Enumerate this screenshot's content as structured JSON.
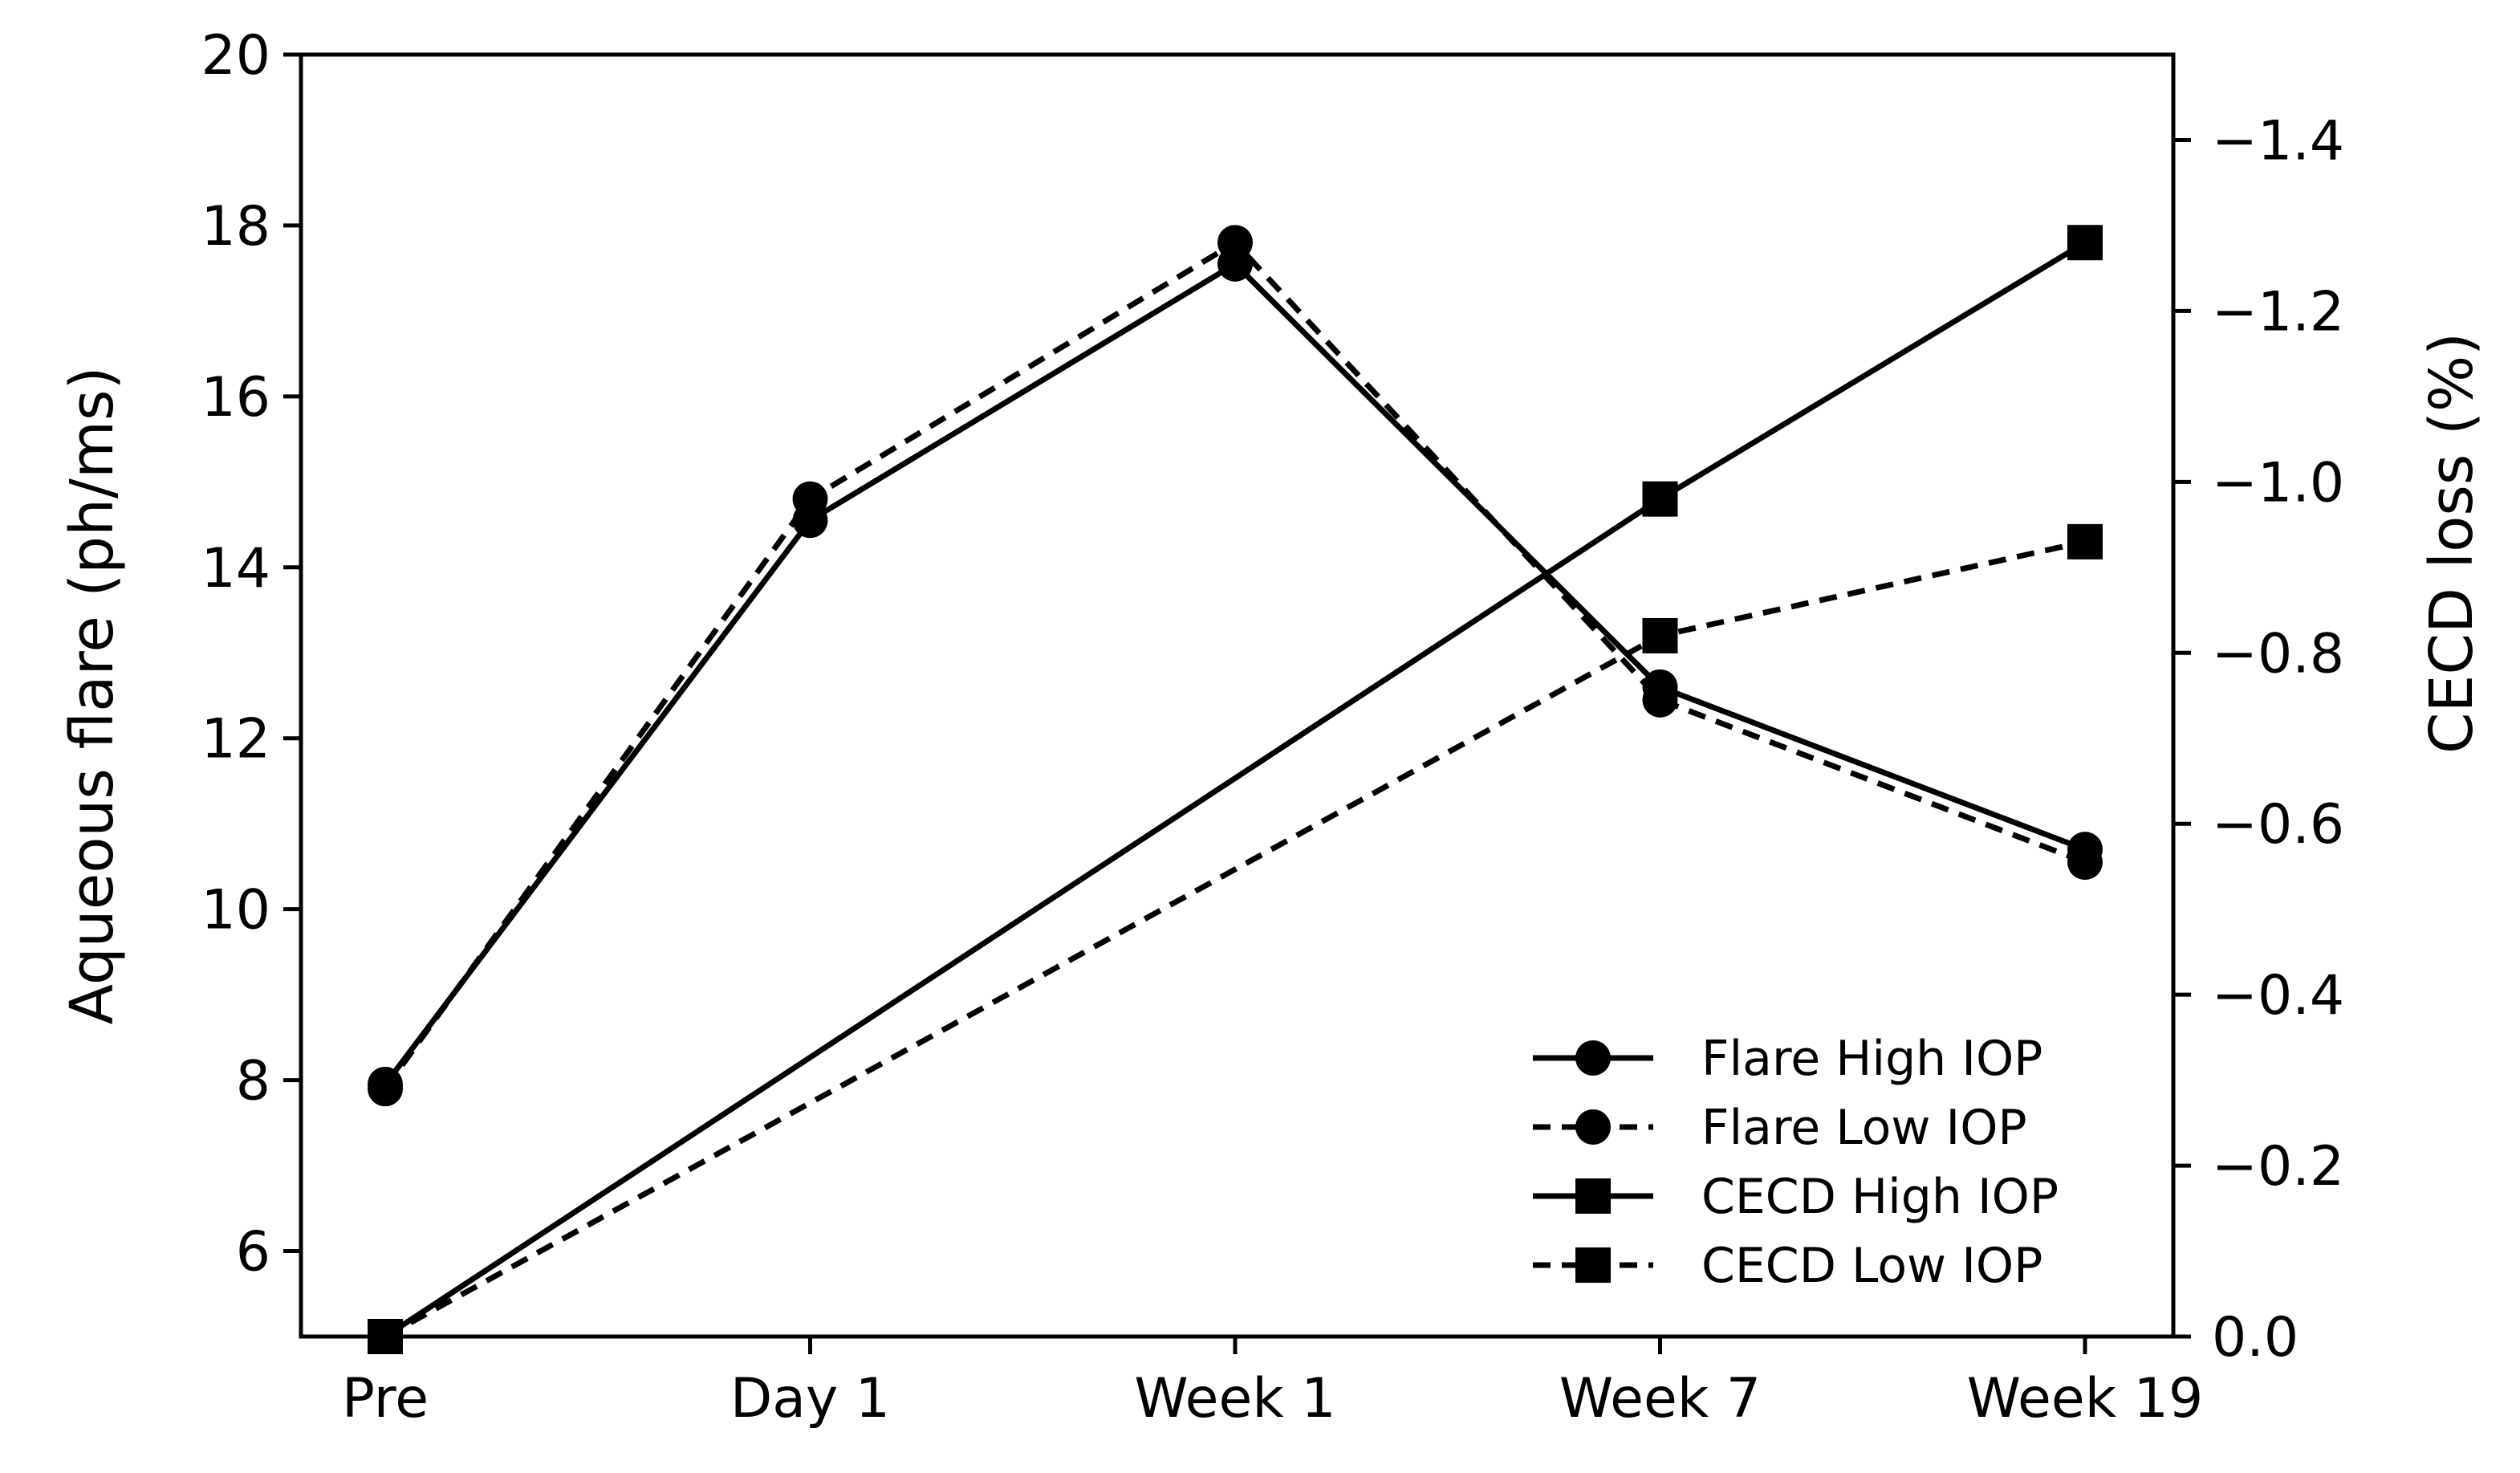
{
  "chart_data": {
    "type": "line",
    "title": "",
    "categories": [
      "Pre",
      "Day 1",
      "Week 1",
      "Week 7",
      "Week 19"
    ],
    "left_axis": {
      "label": "Aqueous flare (ph/ms)",
      "ylim": [
        5,
        20
      ],
      "ticks": [
        6,
        8,
        10,
        12,
        14,
        16,
        18,
        20
      ]
    },
    "right_axis": {
      "label": "CECD loss (%)",
      "ylim": [
        0.0,
        -1.5
      ],
      "ticks": [
        0.0,
        -0.2,
        -0.4,
        -0.6,
        -0.8,
        -1.0,
        -1.2,
        -1.4
      ],
      "tick_labels": [
        "0.0",
        "−0.2",
        "−0.4",
        "−0.6",
        "−0.8",
        "−1.0",
        "−1.2",
        "−1.4"
      ]
    },
    "series": [
      {
        "name": "Flare High IOP",
        "axis": "left",
        "marker": "circle",
        "line": "solid",
        "values": [
          7.95,
          14.55,
          17.55,
          12.6,
          10.7
        ]
      },
      {
        "name": "Flare Low IOP",
        "axis": "left",
        "marker": "circle",
        "line": "dashed",
        "values": [
          7.9,
          14.8,
          17.8,
          12.45,
          10.55
        ]
      },
      {
        "name": "CECD High IOP",
        "axis": "right",
        "marker": "square",
        "line": "solid",
        "values": [
          0.0,
          null,
          null,
          -0.98,
          -1.28
        ]
      },
      {
        "name": "CECD Low IOP",
        "axis": "right",
        "marker": "square",
        "line": "dashed",
        "values": [
          0.0,
          null,
          null,
          -0.82,
          -0.93
        ]
      }
    ],
    "legend_position": "lower-right",
    "grid": false
  }
}
